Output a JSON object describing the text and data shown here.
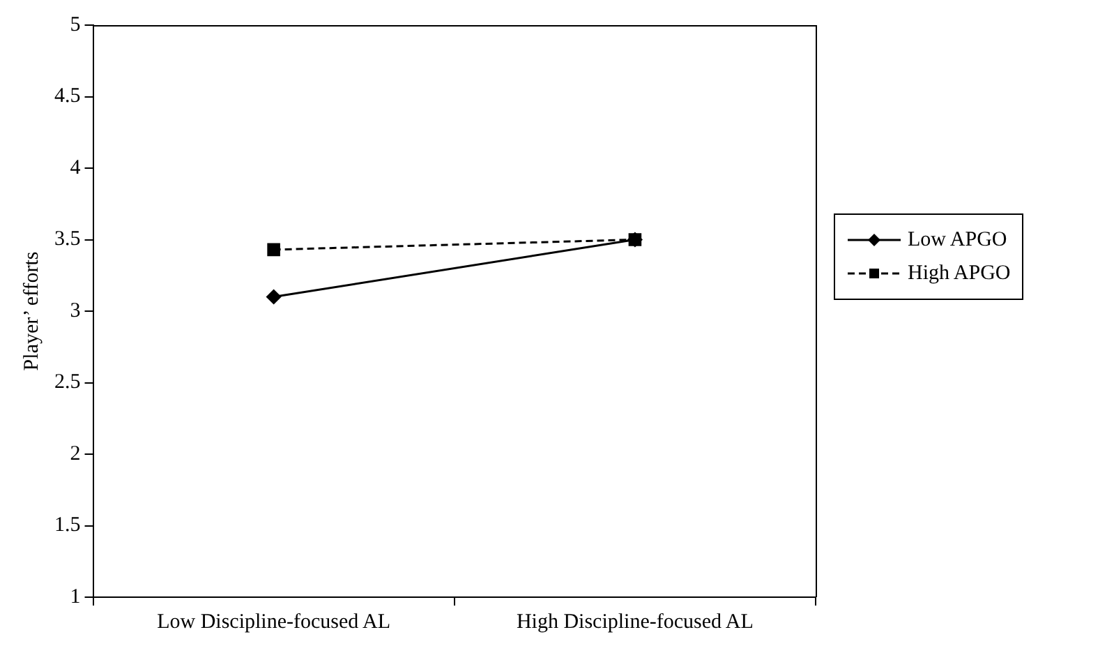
{
  "chart_data": {
    "type": "line",
    "ylabel": "Player’ efforts",
    "categories": [
      "Low Discipline-focused AL",
      "High Discipline-focused AL"
    ],
    "series": [
      {
        "name": "Low APGO",
        "color": "#000000",
        "values": [
          3.1,
          3.5
        ],
        "marker": "diamond",
        "line_style": "solid"
      },
      {
        "name": "High APGO",
        "color": "#000000",
        "values": [
          3.43,
          3.5
        ],
        "marker": "square",
        "line_style": "dashed"
      }
    ],
    "ylim": [
      1,
      5
    ],
    "yticks": [
      1,
      1.5,
      2,
      2.5,
      3,
      3.5,
      4,
      4.5,
      5
    ],
    "grid": false,
    "legend": "right"
  }
}
